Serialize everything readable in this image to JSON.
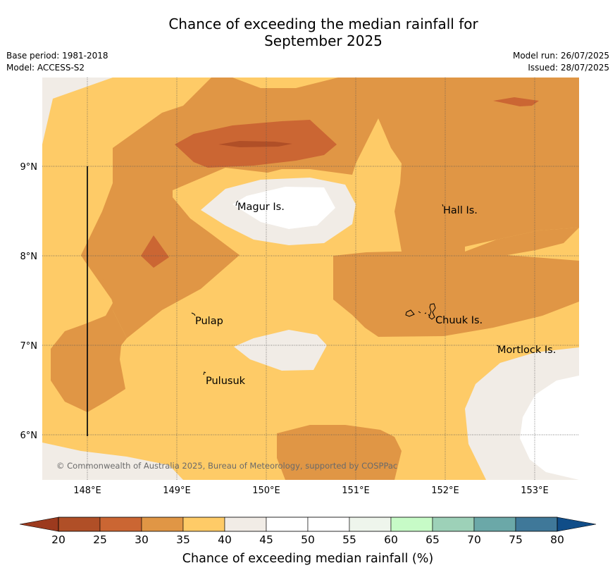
{
  "header": {
    "title_line1": "Chance of exceeding the median rainfall for",
    "title_line2": "September 2025",
    "base_period": "Base period: 1981-2018",
    "model": "Model: ACCESS-S2",
    "model_run": "Model run: 26/07/2025",
    "issued": "Issued: 28/07/2025"
  },
  "map": {
    "lon_ticks": [
      "148°E",
      "149°E",
      "150°E",
      "151°E",
      "152°E",
      "153°E"
    ],
    "lat_ticks": [
      "9°N",
      "8°N",
      "7°N",
      "6°N"
    ],
    "places": [
      {
        "name": "Magur Is."
      },
      {
        "name": "Hall Is."
      },
      {
        "name": "Pulap"
      },
      {
        "name": "Chuuk Is."
      },
      {
        "name": "Mortlock Is."
      },
      {
        "name": "Pulusuk"
      }
    ],
    "copyright": "© Commonwealth of Australia 2025, Bureau of Meteorology, supported by COSPPac"
  },
  "legend": {
    "title": "Chance of exceeding median rainfall (%)",
    "ticks": [
      "20",
      "25",
      "30",
      "35",
      "40",
      "45",
      "50",
      "55",
      "60",
      "65",
      "70",
      "75",
      "80"
    ],
    "colors": [
      "#b04f27",
      "#cb6633",
      "#e09645",
      "#fecb67",
      "#f1ece6",
      "#ffffff",
      "#ffffff",
      "#eef5ec",
      "#c7fbc7",
      "#9dd1b8",
      "#6ba8a8",
      "#3f7899"
    ],
    "under_color": "#9c3a1e",
    "over_color": "#104d88"
  }
}
